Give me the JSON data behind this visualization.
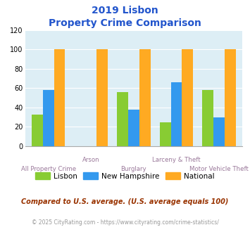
{
  "title_line1": "2019 Lisbon",
  "title_line2": "Property Crime Comparison",
  "categories": [
    "All Property Crime",
    "Arson",
    "Burglary",
    "Larceny & Theft",
    "Motor Vehicle Theft"
  ],
  "lisbon": [
    33,
    0,
    56,
    25,
    58
  ],
  "new_hampshire": [
    58,
    0,
    38,
    66,
    30
  ],
  "national": [
    100,
    100,
    100,
    100,
    100
  ],
  "bar_color_lisbon": "#88cc33",
  "bar_color_nh": "#3399ee",
  "bar_color_national": "#ffaa22",
  "ylim": [
    0,
    120
  ],
  "yticks": [
    0,
    20,
    40,
    60,
    80,
    100,
    120
  ],
  "legend_labels": [
    "Lisbon",
    "New Hampshire",
    "National"
  ],
  "footnote1": "Compared to U.S. average. (U.S. average equals 100)",
  "footnote2": "© 2025 CityRating.com - https://www.cityrating.com/crime-statistics/",
  "title_color": "#2255cc",
  "xlabel_color": "#997799",
  "footnote1_color": "#993300",
  "footnote2_color": "#999999",
  "bg_color": "#ddeef5",
  "fig_bg": "#ffffff",
  "grid_color": "#c8dde8"
}
